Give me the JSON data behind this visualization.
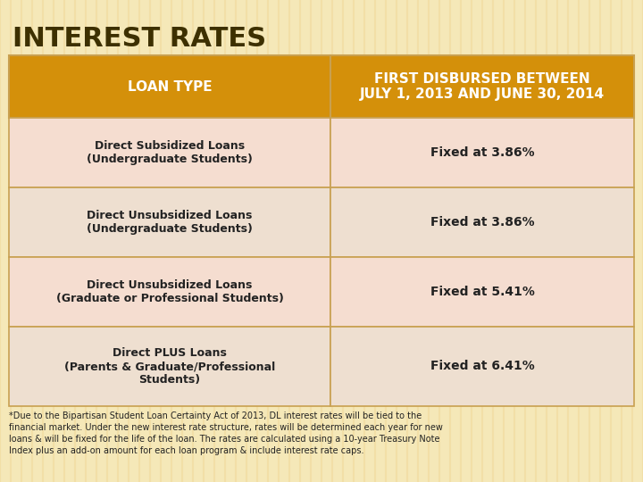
{
  "title": "INTEREST RATES",
  "title_color": "#3d3000",
  "bg_color": "#f5e8b8",
  "header_bg": "#d4900a",
  "header_text_color": "#ffffff",
  "row_bg_odd": "#f5ddd0",
  "row_bg_even": "#f5ddd0",
  "border_color": "#c8a050",
  "col1_header": "LOAN TYPE",
  "col2_header": "FIRST DISBURSED BETWEEN\nJULY 1, 2013 AND JUNE 30, 2014",
  "rows": [
    {
      "loan_type": "Direct Subsidized Loans\n(Undergraduate Students)",
      "rate": "Fixed at 3.86%"
    },
    {
      "loan_type": "Direct Unsubsidized Loans\n(Undergraduate Students)",
      "rate": "Fixed at 3.86%"
    },
    {
      "loan_type": "Direct Unsubsidized Loans\n(Graduate or Professional Students)",
      "rate": "Fixed at 5.41%"
    },
    {
      "loan_type": "Direct PLUS Loans\n(Parents & Graduate/Professional\nStudents)",
      "rate": "Fixed at 6.41%"
    }
  ],
  "footnote_lines": [
    "*Due to the Bipartisan Student Loan Certainty Act of 2013, DL interest rates will be tied to the",
    "financial market. Under the new interest rate structure, rates will be determined each year for new",
    "loans & will be fixed for the life of the loan. The rates are calculated using a 10-year Treasury Note",
    "Index plus an add-on amount for each loan program & include interest rate caps."
  ],
  "footnote_color": "#222222",
  "cell_text_color": "#222222"
}
